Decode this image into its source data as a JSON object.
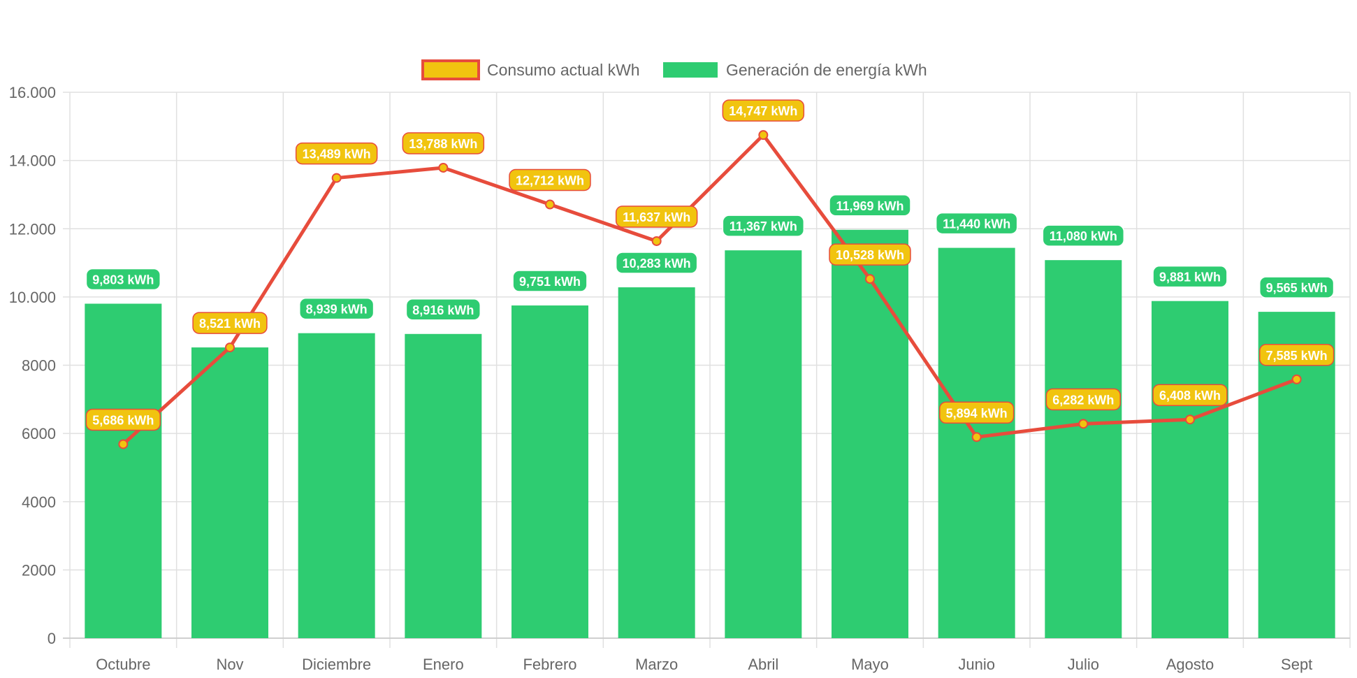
{
  "chart_data": {
    "type": "bar",
    "title": "",
    "xlabel": "",
    "ylabel": "",
    "ylim": [
      0,
      16000
    ],
    "y_ticks": [
      0,
      2000,
      4000,
      6000,
      8000,
      10000,
      12000,
      14000,
      16000
    ],
    "y_tick_labels": [
      "0",
      "2000",
      "4000",
      "6000",
      "8000",
      "10.000",
      "12.000",
      "14.000",
      "16.000"
    ],
    "grid": true,
    "legend_position": "top-center",
    "categories": [
      "Octubre",
      "Nov",
      "Diciembre",
      "Enero",
      "Febrero",
      "Marzo",
      "Abril",
      "Mayo",
      "Junio",
      "Julio",
      "Agosto",
      "Sept"
    ],
    "series": [
      {
        "name": "Consumo actual kWh",
        "type": "line",
        "color": "#e74c3c",
        "fill": "#f1c40f",
        "values": [
          5686,
          8521,
          13489,
          13788,
          12712,
          11637,
          14747,
          10528,
          5894,
          6282,
          6408,
          7585
        ],
        "labels": [
          "5,686 kWh",
          "8,521 kWh",
          "13,489 kWh",
          "13,788 kWh",
          "12,712 kWh",
          "11,637 kWh",
          "14,747 kWh",
          "10,528 kWh",
          "5,894 kWh",
          "6,282 kWh",
          "6,408 kWh",
          "7,585 kWh"
        ]
      },
      {
        "name": "Generación de energía kWh",
        "type": "bar",
        "color": "#2ecc71",
        "values": [
          9803,
          8521,
          8939,
          8916,
          9751,
          10283,
          11367,
          11969,
          11440,
          11080,
          9881,
          9565
        ],
        "labels": [
          "9,803 kWh",
          "8,521 kWh",
          "8,939 kWh",
          "8,916 kWh",
          "9,751 kWh",
          "10,283 kWh",
          "11,367 kWh",
          "11,969 kWh",
          "11,440 kWh",
          "11,080 kWh",
          "9,881 kWh",
          "9,565 kWh"
        ]
      }
    ]
  }
}
